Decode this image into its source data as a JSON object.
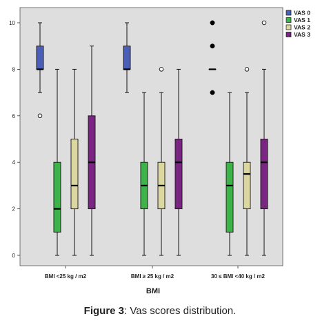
{
  "chart_data": {
    "type": "boxplot",
    "xlabel": "BMI",
    "ylabel": "",
    "ylim": [
      0,
      10
    ],
    "yticks": [
      "0",
      "2",
      "4",
      "6",
      "8",
      "10"
    ],
    "grid": false,
    "legend_position": "top-right",
    "categories": [
      "BMI <25  kg / m2",
      "BMI ≥ 25 kg / m2",
      "30 ≤ BMI <40  kg / m2"
    ],
    "series": [
      {
        "name": "VAS 0",
        "color": "#4a5fb5",
        "boxes": [
          {
            "min": 7,
            "q1": 8,
            "median": 8,
            "q3": 9,
            "max": 10,
            "outliers": [
              6
            ],
            "extremes": []
          },
          {
            "min": 7,
            "q1": 8,
            "median": 8,
            "q3": 9,
            "max": 10,
            "outliers": [],
            "extremes": []
          },
          {
            "min": 8,
            "q1": 8,
            "median": 8,
            "q3": 8,
            "max": 8,
            "outliers": [],
            "extremes": [
              10,
              9,
              7
            ]
          }
        ]
      },
      {
        "name": "VAS 1",
        "color": "#3db34a",
        "boxes": [
          {
            "min": 0,
            "q1": 1,
            "median": 2,
            "q3": 4,
            "max": 8,
            "outliers": [],
            "extremes": []
          },
          {
            "min": 0,
            "q1": 2,
            "median": 3,
            "q3": 4,
            "max": 7,
            "outliers": [],
            "extremes": []
          },
          {
            "min": 0,
            "q1": 1,
            "median": 3,
            "q3": 4,
            "max": 7,
            "outliers": [],
            "extremes": []
          }
        ]
      },
      {
        "name": "VAS 2",
        "color": "#dcd6a0",
        "boxes": [
          {
            "min": 0,
            "q1": 2,
            "median": 3,
            "q3": 5,
            "max": 8,
            "outliers": [],
            "extremes": []
          },
          {
            "min": 0,
            "q1": 2,
            "median": 3,
            "q3": 4,
            "max": 7,
            "outliers": [
              8
            ],
            "extremes": []
          },
          {
            "min": 0,
            "q1": 2,
            "median": 3.5,
            "q3": 4,
            "max": 7,
            "outliers": [
              8
            ],
            "extremes": []
          }
        ]
      },
      {
        "name": "VAS 3",
        "color": "#7b2582",
        "boxes": [
          {
            "min": 0,
            "q1": 2,
            "median": 4,
            "q3": 6,
            "max": 9,
            "outliers": [],
            "extremes": []
          },
          {
            "min": 0,
            "q1": 2,
            "median": 4,
            "q3": 5,
            "max": 8,
            "outliers": [],
            "extremes": []
          },
          {
            "min": 0,
            "q1": 2,
            "median": 4,
            "q3": 5,
            "max": 8,
            "outliers": [
              10
            ],
            "extremes": []
          }
        ]
      }
    ]
  },
  "caption": {
    "bold": "Figure 3",
    "rest": ": Vas scores distribution."
  }
}
